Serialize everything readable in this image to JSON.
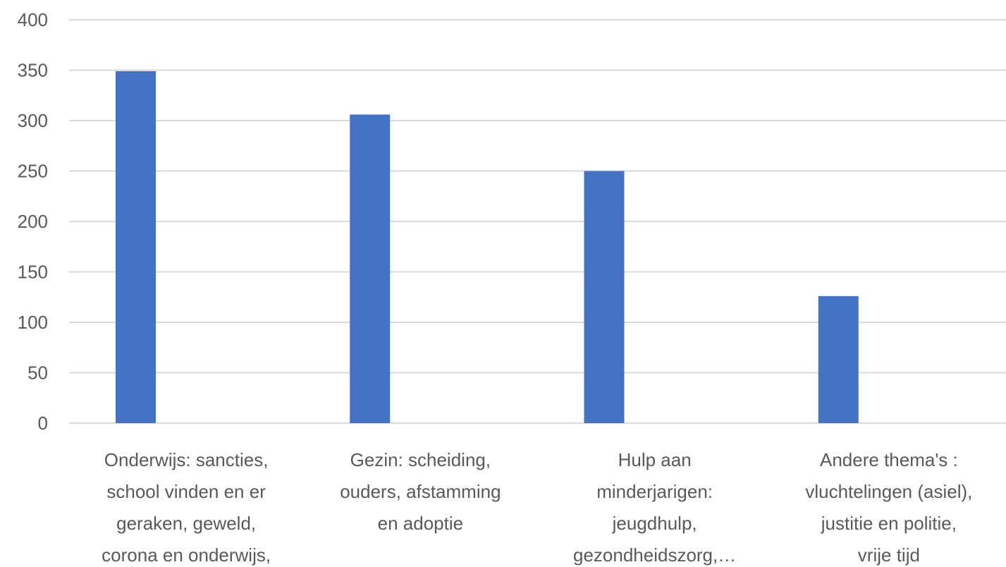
{
  "chart_data": {
    "type": "bar",
    "categories": [
      [
        "Onderwijs: sancties,",
        "school vinden en er",
        "geraken, geweld,",
        "corona en onderwijs,"
      ],
      [
        "Gezin: scheiding,",
        "ouders, afstamming",
        "en adoptie"
      ],
      [
        "Hulp aan",
        "minderjarigen:",
        "jeugdhulp,",
        "gezondheidszorg,…"
      ],
      [
        "Andere thema's :",
        "vluchtelingen (asiel),",
        "justitie en politie,",
        "vrije tijd"
      ]
    ],
    "values": [
      349,
      306,
      250,
      126
    ],
    "ylim": [
      0,
      400
    ],
    "yticks": [
      0,
      50,
      100,
      150,
      200,
      250,
      300,
      350,
      400
    ],
    "grid": true,
    "legend": "none",
    "colors": {
      "bar": "#4472c4",
      "grid": "#d9d9d9",
      "text": "#595959"
    }
  }
}
